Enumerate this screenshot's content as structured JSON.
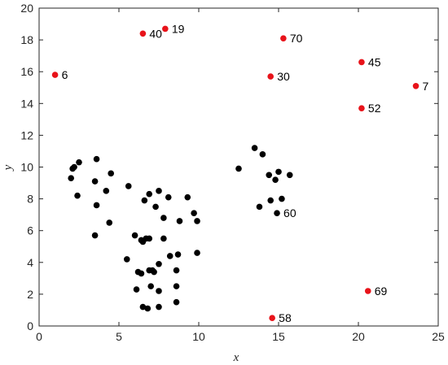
{
  "chart_data": {
    "type": "scatter",
    "title": "",
    "xlabel": "x",
    "ylabel": "y",
    "xlim": [
      0,
      25
    ],
    "ylim": [
      0,
      20
    ],
    "xticks": [
      0,
      5,
      10,
      15,
      20,
      25
    ],
    "yticks": [
      0,
      2,
      4,
      6,
      8,
      10,
      12,
      14,
      16,
      18,
      20
    ],
    "grid": false,
    "colors": {
      "black": "#000000",
      "red": "#e8131a"
    },
    "series": [
      {
        "color": "black",
        "points": [
          [
            2.0,
            9.3
          ],
          [
            2.1,
            9.9
          ],
          [
            2.2,
            10.0
          ],
          [
            2.5,
            10.3
          ],
          [
            2.4,
            8.2
          ],
          [
            3.6,
            10.5
          ],
          [
            3.5,
            9.1
          ],
          [
            3.6,
            7.6
          ],
          [
            3.5,
            5.7
          ],
          [
            4.2,
            8.5
          ],
          [
            4.5,
            9.6
          ],
          [
            4.4,
            6.5
          ],
          [
            5.6,
            8.8
          ],
          [
            5.5,
            4.2
          ],
          [
            6.0,
            5.7
          ],
          [
            6.4,
            5.4
          ],
          [
            6.5,
            5.3
          ],
          [
            6.7,
            5.5
          ],
          [
            6.9,
            5.5
          ],
          [
            6.2,
            3.4
          ],
          [
            6.4,
            3.3
          ],
          [
            6.1,
            2.3
          ],
          [
            6.9,
            3.5
          ],
          [
            7.1,
            3.5
          ],
          [
            7.2,
            3.4
          ],
          [
            7.0,
            2.5
          ],
          [
            7.5,
            2.2
          ],
          [
            6.5,
            1.2
          ],
          [
            6.8,
            1.1
          ],
          [
            7.5,
            1.2
          ],
          [
            7.5,
            3.9
          ],
          [
            8.2,
            4.4
          ],
          [
            8.6,
            3.5
          ],
          [
            8.7,
            4.5
          ],
          [
            8.6,
            2.5
          ],
          [
            8.6,
            1.5
          ],
          [
            9.9,
            4.6
          ],
          [
            6.6,
            7.9
          ],
          [
            6.9,
            8.3
          ],
          [
            7.3,
            7.5
          ],
          [
            7.5,
            8.5
          ],
          [
            7.8,
            6.8
          ],
          [
            8.1,
            8.1
          ],
          [
            7.8,
            5.5
          ],
          [
            8.8,
            6.6
          ],
          [
            9.3,
            8.1
          ],
          [
            9.7,
            7.1
          ],
          [
            9.9,
            6.6
          ],
          [
            12.5,
            9.9
          ],
          [
            13.5,
            11.2
          ],
          [
            14.0,
            10.8
          ],
          [
            14.4,
            9.5
          ],
          [
            14.8,
            9.2
          ],
          [
            15.0,
            9.7
          ],
          [
            15.7,
            9.5
          ],
          [
            13.8,
            7.5
          ],
          [
            14.5,
            7.9
          ],
          [
            15.2,
            8.0
          ],
          [
            14.9,
            7.1
          ]
        ]
      },
      {
        "color": "red",
        "points": [
          {
            "x": 1.0,
            "y": 15.8,
            "label": "6"
          },
          {
            "x": 6.5,
            "y": 18.4,
            "label": "40"
          },
          {
            "x": 7.9,
            "y": 18.7,
            "label": "19"
          },
          {
            "x": 15.3,
            "y": 18.1,
            "label": "70"
          },
          {
            "x": 14.5,
            "y": 15.7,
            "label": "30"
          },
          {
            "x": 20.2,
            "y": 16.6,
            "label": "45"
          },
          {
            "x": 23.6,
            "y": 15.1,
            "label": "7"
          },
          {
            "x": 20.2,
            "y": 13.7,
            "label": "52"
          },
          {
            "x": 20.6,
            "y": 2.2,
            "label": "69"
          },
          {
            "x": 14.6,
            "y": 0.5,
            "label": "58"
          }
        ]
      }
    ],
    "annotations": [
      {
        "x": 14.9,
        "y": 7.1,
        "text": "60"
      }
    ]
  }
}
